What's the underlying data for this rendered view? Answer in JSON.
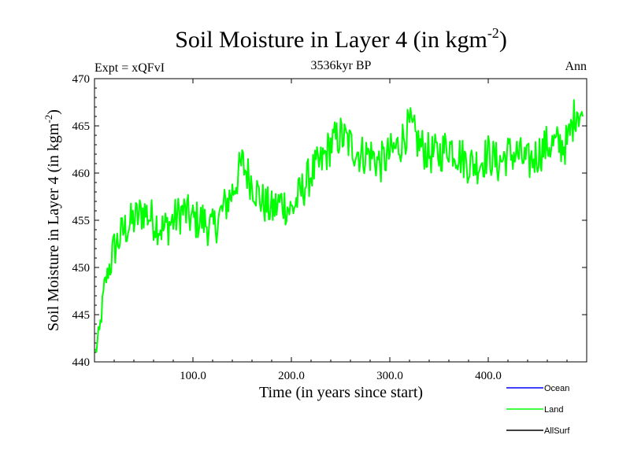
{
  "chart_data": {
    "type": "line",
    "title_main": "Soil Moisture in Layer 4 (in kgm",
    "title_exp": "-2",
    "title_close": ")",
    "subtitle": "3536kyr BP",
    "expt_label": "Expt = xQFvI",
    "season_label": "Ann",
    "xlabel": "Time (in years since start)",
    "ylabel_main": "Soil Moisture in Layer 4 (in kgm",
    "ylabel_exp": "-2",
    "ylabel_close": ")",
    "xlim": [
      0,
      500
    ],
    "ylim": [
      440,
      470
    ],
    "x_ticks": [
      100,
      200,
      300,
      400
    ],
    "x_tick_labels": [
      "100.0",
      "200.0",
      "300.0",
      "400.0"
    ],
    "y_ticks": [
      440,
      445,
      450,
      455,
      460,
      465,
      470
    ],
    "y_tick_labels": [
      "440",
      "445",
      "450",
      "455",
      "460",
      "465",
      "470"
    ],
    "series": [
      {
        "name": "Land",
        "color": "#00ff00",
        "x": [
          1,
          5,
          10,
          20,
          30,
          40,
          50,
          60,
          70,
          80,
          90,
          100,
          110,
          120,
          130,
          140,
          150,
          160,
          170,
          180,
          190,
          200,
          210,
          220,
          230,
          240,
          250,
          260,
          270,
          280,
          290,
          300,
          310,
          320,
          330,
          340,
          350,
          360,
          370,
          380,
          390,
          400,
          410,
          420,
          430,
          440,
          450,
          460,
          470,
          480,
          490,
          496
        ],
        "y": [
          441,
          443,
          448,
          452,
          454,
          455,
          456,
          455,
          454,
          455,
          456,
          455,
          455,
          454,
          456,
          458,
          461,
          459,
          457,
          456,
          457,
          456,
          458,
          460,
          461,
          463,
          464,
          463,
          462,
          462,
          461,
          462,
          463,
          465,
          463,
          462,
          462,
          463,
          462,
          461,
          461,
          462,
          461,
          462,
          462,
          461,
          462,
          463,
          463,
          463,
          467,
          466
        ]
      }
    ],
    "legend": [
      {
        "label": "Ocean",
        "color": "#0000ff"
      },
      {
        "label": "Land",
        "color": "#00ff00"
      },
      {
        "label": "AllSurf",
        "color": "#000000"
      }
    ]
  }
}
